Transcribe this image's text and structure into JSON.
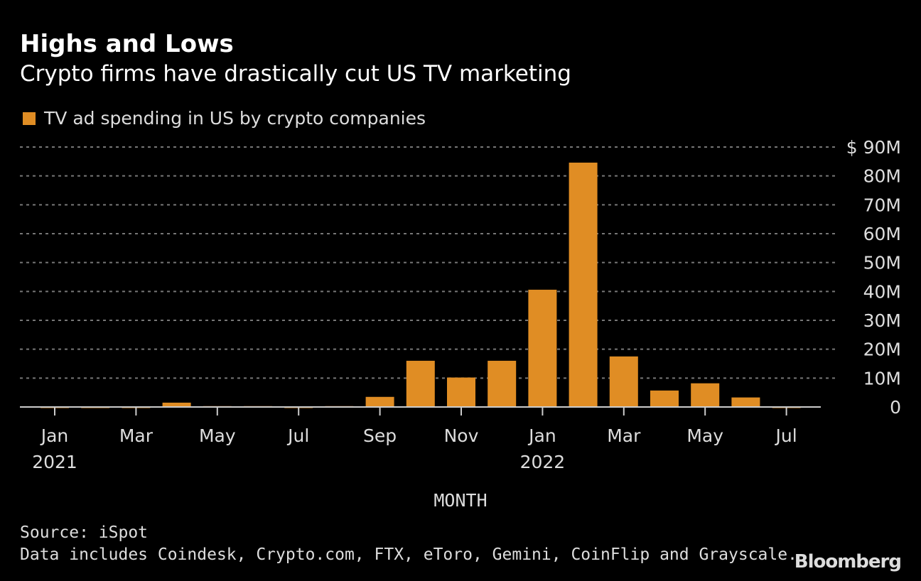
{
  "chart_data": {
    "type": "bar",
    "title": "Highs and Lows",
    "subtitle": "Crypto firms have drastically cut US TV marketing",
    "legend": [
      "TV ad spending in US by crypto companies"
    ],
    "legend_position": "top-left",
    "xlabel": "MONTH",
    "ylabel": "",
    "ylim": [
      0,
      90
    ],
    "y_unit": "M USD",
    "grid": true,
    "y_ticks": [
      "0",
      "10M",
      "20M",
      "30M",
      "40M",
      "50M",
      "60M",
      "70M",
      "80M",
      "$ 90M"
    ],
    "x_tick_labels": [
      {
        "month": "Jan",
        "year": "2021",
        "index": 0
      },
      {
        "month": "Mar",
        "year": "",
        "index": 2
      },
      {
        "month": "May",
        "year": "",
        "index": 4
      },
      {
        "month": "Jul",
        "year": "",
        "index": 6
      },
      {
        "month": "Sep",
        "year": "",
        "index": 8
      },
      {
        "month": "Nov",
        "year": "",
        "index": 10
      },
      {
        "month": "Jan",
        "year": "2022",
        "index": 12
      },
      {
        "month": "Mar",
        "year": "",
        "index": 14
      },
      {
        "month": "May",
        "year": "",
        "index": 16
      },
      {
        "month": "Jul",
        "year": "",
        "index": 18
      }
    ],
    "categories": [
      "2021-01",
      "2021-02",
      "2021-03",
      "2021-04",
      "2021-05",
      "2021-06",
      "2021-07",
      "2021-08",
      "2021-09",
      "2021-10",
      "2021-11",
      "2021-12",
      "2022-01",
      "2022-02",
      "2022-03",
      "2022-04",
      "2022-05",
      "2022-06",
      "2022-07"
    ],
    "values": [
      -0.2,
      -0.2,
      -0.2,
      1.5,
      0.3,
      0.3,
      -0.2,
      0.3,
      3.5,
      16.0,
      10.2,
      16.0,
      40.6,
      84.6,
      17.5,
      5.7,
      8.2,
      3.3,
      -0.2
    ],
    "bar_color": "#e08d24"
  },
  "source": "Source: iSpot",
  "note": "Data includes Coindesk, Crypto.com, FTX, eToro, Gemini, CoinFlip and Grayscale.",
  "brand": "Bloomberg"
}
